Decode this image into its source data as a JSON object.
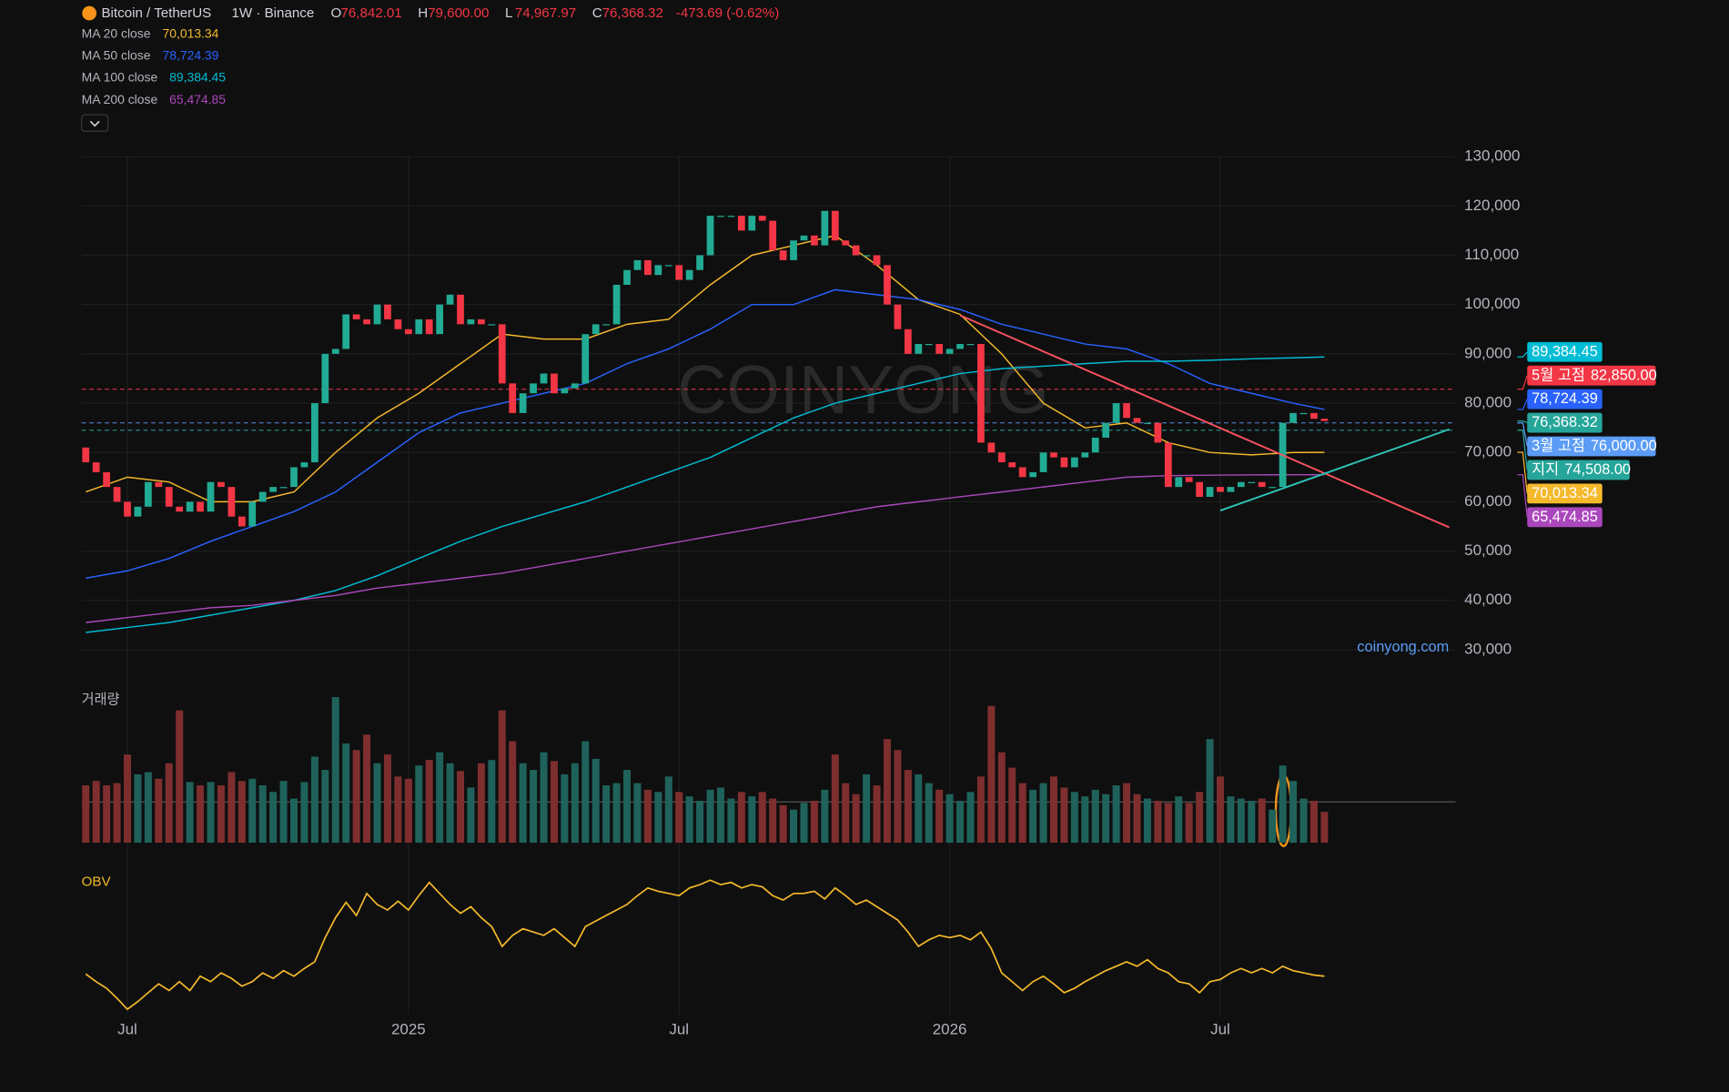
{
  "header": {
    "symbol": "Bitcoin / TetherUS",
    "interval": "1W · Binance",
    "ohlc": [
      {
        "key": "O",
        "value": "76,842.01"
      },
      {
        "key": "H",
        "value": "79,600.00"
      },
      {
        "key": "L",
        "value": "74,967.97"
      },
      {
        "key": "C",
        "value": "76,368.32"
      }
    ],
    "change": "-473.69 (-0.62%)"
  },
  "chart_data": {
    "type": "candlestick",
    "xlim": [
      -0.4,
      131.6
    ],
    "xticks": [
      {
        "value": 4,
        "label": "Jul"
      },
      {
        "value": 31,
        "label": "2025"
      },
      {
        "value": 57,
        "label": "Jul"
      },
      {
        "value": 83,
        "label": "2026"
      },
      {
        "value": 109,
        "label": "Jul"
      }
    ],
    "ylim": [
      30000,
      130000
    ],
    "yticks": [
      {
        "value": 130000,
        "label": "130,000"
      },
      {
        "value": 120000,
        "label": "120,000"
      },
      {
        "value": 110000,
        "label": "110,000"
      },
      {
        "value": 100000,
        "label": "100,000"
      },
      {
        "value": 90000,
        "label": "90,000"
      },
      {
        "value": 80000,
        "label": "80,000"
      },
      {
        "value": 70000,
        "label": "70,000"
      },
      {
        "value": 60000,
        "label": "60,000"
      },
      {
        "value": 50000,
        "label": "50,000"
      },
      {
        "value": 40000,
        "label": "40,000"
      },
      {
        "value": 30000,
        "label": "30,000"
      }
    ],
    "grid": true,
    "up_color": "#22ab94",
    "down_color": "#f23645",
    "first_open": 71000,
    "close": [
      68000,
      66000,
      63000,
      60000,
      57000,
      59000,
      64000,
      63000,
      59000,
      58000,
      60000,
      58000,
      64000,
      63000,
      57000,
      55000,
      60000,
      62000,
      63000,
      63000,
      67000,
      68000,
      80000,
      90000,
      91000,
      98000,
      97000,
      96000,
      100000,
      97000,
      95000,
      94000,
      97000,
      94000,
      100000,
      102000,
      96000,
      97000,
      96000,
      96000,
      84000,
      78000,
      82000,
      84000,
      86000,
      82000,
      83000,
      84000,
      94000,
      96000,
      96000,
      104000,
      107000,
      109000,
      106000,
      108000,
      108000,
      105000,
      107000,
      110000,
      118000,
      118000,
      118000,
      115000,
      118000,
      117000,
      111000,
      109000,
      113000,
      114000,
      112000,
      119000,
      113000,
      112000,
      110000,
      110000,
      108000,
      100000,
      95000,
      90000,
      92000,
      92000,
      90000,
      91000,
      92000,
      92000,
      72000,
      70000,
      68000,
      67000,
      65000,
      66000,
      70000,
      69000,
      67000,
      69000,
      70000,
      73000,
      76000,
      80000,
      77000,
      76000,
      76000,
      72000,
      63000,
      65000,
      64000,
      61000,
      63000,
      62000,
      63000,
      64000,
      64000,
      63000,
      63000,
      76000,
      78000,
      78000,
      76842.01,
      76368.32
    ],
    "close_label": "76,368.32",
    "series": [
      {
        "name": "MA 20 close",
        "color": "#f5b92c",
        "last_label": "70,013.34",
        "x": [
          0,
          4,
          8,
          12,
          16,
          20,
          24,
          28,
          32,
          36,
          40,
          44,
          48,
          52,
          56,
          60,
          64,
          68,
          72,
          76,
          80,
          84,
          88,
          92,
          96,
          100,
          104,
          108,
          112,
          116,
          119
        ],
        "values": [
          62000,
          65000,
          64000,
          60000,
          60000,
          62000,
          70000,
          77000,
          82000,
          88000,
          94000,
          93000,
          93000,
          96000,
          97000,
          104000,
          110000,
          112000,
          114000,
          108000,
          101000,
          98000,
          90000,
          80000,
          75000,
          76000,
          72000,
          70000,
          69500,
          70000,
          70013.34
        ]
      },
      {
        "name": "MA 50 close",
        "color": "#2962ff",
        "last_label": "78,724.39",
        "x": [
          0,
          4,
          8,
          12,
          16,
          20,
          24,
          28,
          32,
          36,
          40,
          44,
          48,
          52,
          56,
          60,
          64,
          68,
          72,
          76,
          80,
          84,
          88,
          92,
          96,
          100,
          104,
          108,
          112,
          116,
          119
        ],
        "values": [
          44500,
          46000,
          48500,
          52000,
          55000,
          58000,
          62000,
          68000,
          74000,
          78000,
          80000,
          82000,
          84000,
          88000,
          91000,
          95000,
          100000,
          100000,
          103000,
          102000,
          101000,
          99000,
          96000,
          94000,
          92000,
          91000,
          88000,
          84000,
          82000,
          80000,
          78724.39
        ]
      },
      {
        "name": "MA 100 close",
        "color": "#00bcd4",
        "last_label": "89,384.45",
        "x": [
          0,
          4,
          8,
          12,
          16,
          20,
          24,
          28,
          32,
          36,
          40,
          44,
          48,
          52,
          56,
          60,
          64,
          68,
          72,
          76,
          80,
          84,
          88,
          92,
          96,
          100,
          104,
          108,
          112,
          116,
          119
        ],
        "values": [
          33500,
          34500,
          35500,
          37000,
          38500,
          40000,
          42000,
          45000,
          48500,
          52000,
          55000,
          57500,
          60000,
          63000,
          66000,
          69000,
          73000,
          77000,
          80000,
          82000,
          84000,
          86000,
          87000,
          87500,
          88000,
          88500,
          88500,
          88700,
          89000,
          89200,
          89384.45
        ]
      },
      {
        "name": "MA 200 close",
        "color": "#ab47bc",
        "last_label": "65,474.85",
        "x": [
          0,
          4,
          8,
          12,
          16,
          20,
          24,
          28,
          32,
          36,
          40,
          44,
          48,
          52,
          56,
          60,
          64,
          68,
          72,
          76,
          80,
          84,
          88,
          92,
          96,
          100,
          104,
          108,
          112,
          116,
          119
        ],
        "values": [
          35500,
          36500,
          37500,
          38500,
          39000,
          40000,
          41000,
          42500,
          43500,
          44500,
          45500,
          47000,
          48500,
          50000,
          51500,
          53000,
          54500,
          56000,
          57500,
          59000,
          60000,
          61000,
          62000,
          63000,
          64000,
          65000,
          65300,
          65400,
          65450,
          65470,
          65474.85
        ]
      }
    ],
    "levels": [
      {
        "name": "5월 고점",
        "value": 82850,
        "label": "82,850.00",
        "color": "#f23645"
      },
      {
        "name": "3월 고점",
        "value": 76000,
        "label": "76,000.00",
        "color": "#5b9cf6"
      },
      {
        "name": "지지",
        "value": 74508,
        "label": "74,508.00",
        "color": "#26a69a"
      }
    ],
    "trendlines": [
      {
        "color": "#f7525f",
        "x": [
          84,
          131
        ],
        "values": [
          97800,
          54800
        ]
      },
      {
        "color": "#2ec4b6",
        "x": [
          109,
          131
        ],
        "values": [
          58200,
          74700
        ]
      }
    ],
    "watermark": "COINYONG",
    "source": "coinyong.com",
    "volume": {
      "title": "거래량",
      "up_color": "#1f625b",
      "down_color": "#7e2e2e",
      "values": [
        52,
        56,
        52,
        54,
        80,
        62,
        64,
        58,
        72,
        120,
        55,
        52,
        55,
        52,
        64,
        56,
        58,
        52,
        46,
        56,
        40,
        55,
        78,
        66,
        132,
        90,
        84,
        98,
        72,
        80,
        60,
        58,
        70,
        75,
        82,
        72,
        65,
        50,
        72,
        75,
        120,
        92,
        72,
        66,
        82,
        74,
        62,
        72,
        92,
        76,
        52,
        54,
        66,
        54,
        48,
        46,
        60,
        46,
        42,
        38,
        48,
        50,
        40,
        46,
        42,
        46,
        40,
        34,
        30,
        36,
        38,
        48,
        80,
        54,
        44,
        62,
        52,
        94,
        84,
        66,
        62,
        54,
        48,
        44,
        38,
        46,
        60,
        124,
        82,
        68,
        54,
        48,
        54,
        60,
        50,
        46,
        42,
        48,
        44,
        52,
        54,
        44,
        40,
        38,
        36,
        42,
        36,
        46,
        94,
        60,
        42,
        40,
        38,
        40,
        30,
        70,
        56,
        40,
        38,
        28
      ]
    },
    "obv": {
      "title": "OBV",
      "color": "#f5b92c",
      "values": [
        37,
        30,
        24,
        15,
        5,
        12,
        20,
        28,
        22,
        30,
        22,
        35,
        30,
        38,
        33,
        26,
        30,
        38,
        33,
        40,
        35,
        42,
        48,
        70,
        88,
        102,
        90,
        110,
        100,
        95,
        103,
        95,
        108,
        120,
        110,
        100,
        92,
        98,
        88,
        80,
        62,
        72,
        78,
        75,
        72,
        78,
        70,
        62,
        80,
        85,
        90,
        95,
        100,
        108,
        115,
        112,
        110,
        108,
        115,
        118,
        122,
        118,
        120,
        115,
        118,
        116,
        108,
        104,
        110,
        110,
        112,
        105,
        115,
        108,
        100,
        104,
        98,
        92,
        86,
        75,
        62,
        68,
        72,
        70,
        72,
        68,
        75,
        60,
        38,
        30,
        22,
        30,
        35,
        28,
        20,
        24,
        30,
        35,
        40,
        44,
        48,
        44,
        50,
        42,
        38,
        30,
        28,
        20,
        30,
        32,
        38,
        42,
        38,
        42,
        38,
        44,
        40,
        38,
        36,
        35
      ]
    }
  }
}
